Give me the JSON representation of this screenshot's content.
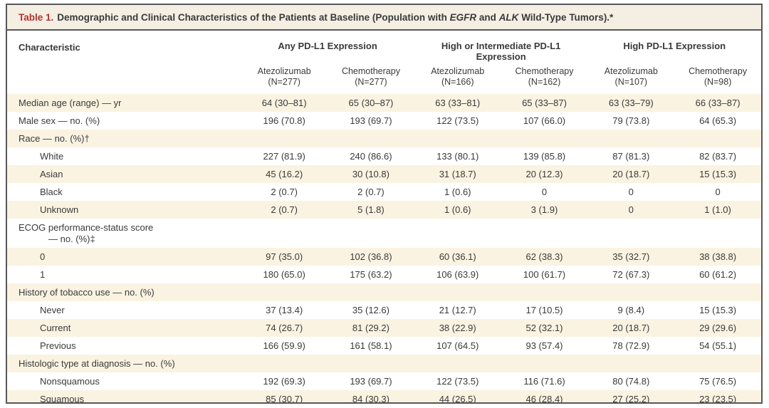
{
  "table": {
    "title": {
      "label": "Table 1.",
      "segments": [
        {
          "text": "Demographic and Clinical Characteristics of the Patients at Baseline (Population with ",
          "italic": false
        },
        {
          "text": "EGFR",
          "italic": true
        },
        {
          "text": " and ",
          "italic": false
        },
        {
          "text": "ALK",
          "italic": true
        },
        {
          "text": " Wild-Type Tumors).*",
          "italic": false
        }
      ]
    },
    "header": {
      "characteristic_label": "Characteristic",
      "groups": [
        {
          "label": "Any PD-L1 Expression"
        },
        {
          "label": "High or Intermediate PD-L1 Expression"
        },
        {
          "label": "High PD-L1 Expression"
        }
      ],
      "columns": [
        {
          "treatment": "Atezolizumab",
          "n": "(N=277)"
        },
        {
          "treatment": "Chemotherapy",
          "n": "(N=277)"
        },
        {
          "treatment": "Atezolizumab",
          "n": "(N=166)"
        },
        {
          "treatment": "Chemotherapy",
          "n": "(N=162)"
        },
        {
          "treatment": "Atezolizumab",
          "n": "(N=107)"
        },
        {
          "treatment": "Chemotherapy",
          "n": "(N=98)"
        }
      ]
    },
    "rows": [
      {
        "label": "Median age (range) — yr",
        "indent": 0,
        "values": [
          "64 (30–81)",
          "65 (30–87)",
          "63 (33–81)",
          "65 (33–87)",
          "63 (33–79)",
          "66 (33–87)"
        ]
      },
      {
        "label": "Male sex — no. (%)",
        "indent": 0,
        "values": [
          "196 (70.8)",
          "193 (69.7)",
          "122 (73.5)",
          "107 (66.0)",
          "79 (73.8)",
          "64 (65.3)"
        ]
      },
      {
        "label": "Race — no. (%)†",
        "indent": 0,
        "values": [
          "",
          "",
          "",
          "",
          "",
          ""
        ]
      },
      {
        "label": "White",
        "indent": 1,
        "values": [
          "227 (81.9)",
          "240 (86.6)",
          "133 (80.1)",
          "139 (85.8)",
          "87 (81.3)",
          "82 (83.7)"
        ]
      },
      {
        "label": "Asian",
        "indent": 1,
        "values": [
          "45 (16.2)",
          "30 (10.8)",
          "31 (18.7)",
          "20 (12.3)",
          "20 (18.7)",
          "15 (15.3)"
        ]
      },
      {
        "label": "Black",
        "indent": 1,
        "values": [
          "2 (0.7)",
          "2 (0.7)",
          "1 (0.6)",
          "0",
          "0",
          "0"
        ]
      },
      {
        "label": "Unknown",
        "indent": 1,
        "values": [
          "2 (0.7)",
          "5 (1.8)",
          "1 (0.6)",
          "3 (1.9)",
          "0",
          "1 (1.0)"
        ]
      },
      {
        "label": "ECOG performance-status score",
        "sublabel": "— no. (%)‡",
        "indent": 0,
        "values": [
          "",
          "",
          "",
          "",
          "",
          ""
        ]
      },
      {
        "label": "0",
        "indent": 1,
        "values": [
          "97 (35.0)",
          "102 (36.8)",
          "60 (36.1)",
          "62 (38.3)",
          "35 (32.7)",
          "38 (38.8)"
        ]
      },
      {
        "label": "1",
        "indent": 1,
        "values": [
          "180 (65.0)",
          "175 (63.2)",
          "106 (63.9)",
          "100 (61.7)",
          "72 (67.3)",
          "60 (61.2)"
        ]
      },
      {
        "label": "History of tobacco use — no. (%)",
        "indent": 0,
        "values": [
          "",
          "",
          "",
          "",
          "",
          ""
        ]
      },
      {
        "label": "Never",
        "indent": 1,
        "values": [
          "37 (13.4)",
          "35 (12.6)",
          "21 (12.7)",
          "17 (10.5)",
          "9 (8.4)",
          "15 (15.3)"
        ]
      },
      {
        "label": "Current",
        "indent": 1,
        "values": [
          "74 (26.7)",
          "81 (29.2)",
          "38 (22.9)",
          "52 (32.1)",
          "20 (18.7)",
          "29 (29.6)"
        ]
      },
      {
        "label": "Previous",
        "indent": 1,
        "values": [
          "166 (59.9)",
          "161 (58.1)",
          "107 (64.5)",
          "93 (57.4)",
          "78 (72.9)",
          "54 (55.1)"
        ]
      },
      {
        "label": "Histologic type at diagnosis — no. (%)",
        "indent": 0,
        "values": [
          "",
          "",
          "",
          "",
          "",
          ""
        ]
      },
      {
        "label": "Nonsquamous",
        "indent": 1,
        "values": [
          "192 (69.3)",
          "193 (69.7)",
          "122 (73.5)",
          "116 (71.6)",
          "80 (74.8)",
          "75 (76.5)"
        ]
      },
      {
        "label": "Squamous",
        "indent": 1,
        "values": [
          "85 (30.7)",
          "84 (30.3)",
          "44 (26.5)",
          "46 (28.4)",
          "27 (25.2)",
          "23 (23.5)"
        ]
      }
    ],
    "colors": {
      "stripe": "#faf3e1",
      "title_bar": "#f4efe2",
      "accent_red": "#b23230",
      "border": "#57575b",
      "text": "#3a3a3c"
    }
  }
}
